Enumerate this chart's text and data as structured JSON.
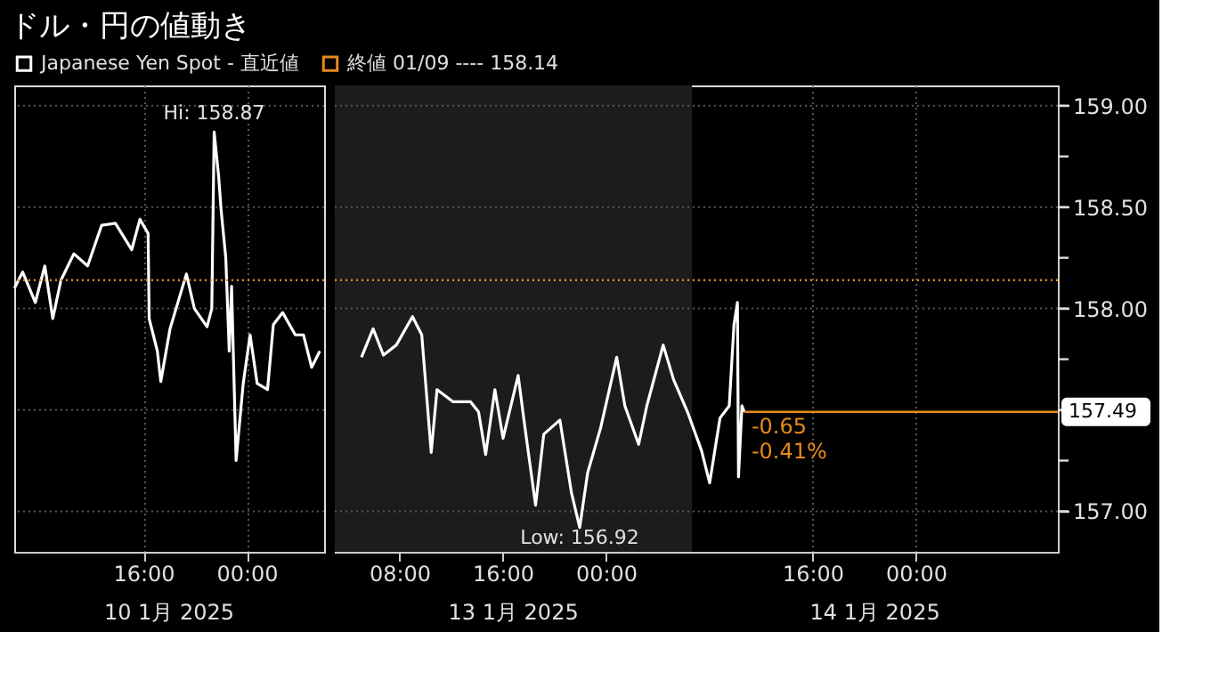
{
  "chart_data": [
    {
      "type": "line",
      "title": "ドル・円の値動き",
      "x": [
        "2025-01-10T06:01",
        "2025-01-10T06:39",
        "2025-01-10T07:38",
        "2025-01-10T08:22",
        "2025-01-10T08:59",
        "2025-01-10T09:37",
        "2025-01-10T10:37",
        "2025-01-10T11:41",
        "2025-01-10T12:46",
        "2025-01-10T13:50",
        "2025-01-10T15:06",
        "2025-01-10T15:44",
        "2025-01-10T16:22",
        "2025-01-10T16:27",
        "2025-01-10T17:05",
        "2025-01-10T17:21",
        "2025-01-10T18:04",
        "2025-01-10T19:20",
        "2025-01-10T19:57",
        "2025-01-10T20:56",
        "2025-01-10T21:18",
        "2025-01-10T21:29",
        "2025-01-10T21:50",
        "2025-01-10T22:01",
        "2025-01-10T22:23",
        "2025-01-10T22:39",
        "2025-01-10T22:50",
        "2025-01-10T23:11",
        "2025-01-10T23:44",
        "2025-01-11T00:16",
        "2025-01-11T00:49",
        "2025-01-11T01:37",
        "2025-01-11T02:04",
        "2025-01-11T02:47",
        "2025-01-11T03:46",
        "2025-01-11T04:24",
        "2025-01-11T05:02",
        "2025-01-11T05:40"
      ],
      "series": [
        {
          "name": "Japanese Yen Spot - 直近値",
          "color": "#ffffff",
          "values": [
            158.1,
            158.18,
            158.03,
            158.21,
            157.95,
            158.14,
            158.27,
            158.21,
            158.41,
            158.42,
            158.29,
            158.44,
            158.37,
            157.95,
            157.79,
            157.64,
            157.9,
            158.17,
            158.0,
            157.91,
            158.0,
            158.87,
            158.65,
            158.49,
            158.25,
            157.79,
            158.11,
            157.25,
            157.63,
            157.87,
            157.63,
            157.6,
            157.92,
            157.98,
            157.87,
            157.87,
            157.71,
            157.79
          ]
        }
      ],
      "xlim": [
        "2025-01-10T06:00",
        "2025-01-11T06:00"
      ],
      "xticks": [
        {
          "value": "2025-01-10T16:00",
          "label": "16:00"
        },
        {
          "value": "2025-01-11T00:00",
          "label": "00:00"
        }
      ],
      "ylim": [
        156.8,
        159.1
      ],
      "yticks": [
        157,
        157.5,
        158,
        158.5,
        159
      ],
      "tick_labels": "x",
      "ref_lines": [
        {
          "axis": "y",
          "value": 158.14,
          "label": "終値 01/09 ---- 158.14",
          "color": "#e8891c",
          "line_style": "dotted"
        }
      ],
      "annotations": [
        {
          "text": "Hi: 158.87",
          "x": "2025-01-10T21:29",
          "y": 158.87
        },
        "10 1月 2025"
      ],
      "grid": true,
      "legend": "top",
      "line_style": "solid",
      "marker": "none"
    },
    {
      "type": "line",
      "x": [
        "2025-01-13T05:04",
        "2025-01-13T05:58",
        "2025-01-13T06:46",
        "2025-01-13T07:46",
        "2025-01-13T09:01",
        "2025-01-13T09:44",
        "2025-01-13T10:28",
        "2025-01-13T10:55",
        "2025-01-13T12:10",
        "2025-01-13T13:31",
        "2025-01-13T14:08",
        "2025-01-13T14:41",
        "2025-01-13T15:24",
        "2025-01-13T16:02",
        "2025-01-13T17:12",
        "2025-01-13T17:44",
        "2025-01-13T18:33",
        "2025-01-13T19:11",
        "2025-01-13T20:26",
        "2025-01-13T21:20",
        "2025-01-13T21:58",
        "2025-01-13T22:35",
        "2025-01-13T23:35",
        "2025-01-14T00:50",
        "2025-01-14T01:28",
        "2025-01-14T02:32",
        "2025-01-14T03:10",
        "2025-01-14T04:26",
        "2025-01-14T05:14",
        "2025-01-14T06:19",
        "2025-01-14T07:24",
        "2025-01-14T08:02",
        "2025-01-14T08:50",
        "2025-01-14T09:33",
        "2025-01-14T09:55",
        "2025-01-14T10:11",
        "2025-01-14T10:16",
        "2025-01-14T10:32",
        "2025-01-14T10:43"
      ],
      "series": [
        {
          "name": "Japanese Yen Spot - 直近値",
          "color": "#ffffff",
          "values": [
            157.76,
            157.9,
            157.77,
            157.82,
            157.96,
            157.87,
            157.29,
            157.6,
            157.54,
            157.54,
            157.49,
            157.28,
            157.6,
            157.36,
            157.67,
            157.41,
            157.03,
            157.38,
            157.45,
            157.09,
            156.92,
            157.19,
            157.41,
            157.76,
            157.52,
            157.33,
            157.52,
            157.82,
            157.65,
            157.49,
            157.3,
            157.14,
            157.46,
            157.52,
            157.92,
            158.03,
            157.17,
            157.52,
            157.49
          ]
        }
      ],
      "xlim": [
        "2025-01-13T03:00",
        "2025-01-15T11:00"
      ],
      "xticks": [
        {
          "value": "2025-01-13T08:00",
          "label": "08:00"
        },
        {
          "value": "2025-01-13T16:00",
          "label": "16:00"
        },
        {
          "value": "2025-01-14T00:00",
          "label": "00:00"
        },
        {
          "value": "2025-01-14T16:00",
          "label": "16:00"
        },
        {
          "value": "2025-01-15T00:00",
          "label": "00:00"
        }
      ],
      "ylim": [
        156.8,
        159.1
      ],
      "yticks": [
        {
          "value": 157,
          "label": "157.00"
        },
        {
          "value": 157.25,
          "label": null
        },
        {
          "value": 157.5,
          "label": null
        },
        {
          "value": 157.75,
          "label": null
        },
        {
          "value": 158,
          "label": "158.00"
        },
        {
          "value": 158.25,
          "label": null
        },
        {
          "value": 158.5,
          "label": "158.50"
        },
        {
          "value": 158.75,
          "label": null
        },
        {
          "value": 159,
          "label": "159.00"
        }
      ],
      "bands": [
        {
          "axis": "x",
          "from": "2025-01-13T03:00",
          "to": "2025-01-14T06:40",
          "color": "#1c1c1c"
        }
      ],
      "ref_lines": [
        {
          "axis": "y",
          "value": 158.14,
          "color": "#e8891c",
          "line_style": "dotted"
        },
        {
          "axis": "y",
          "value": 157.49,
          "label": "157.49",
          "color": "#e8891c",
          "line_style": "solid"
        }
      ],
      "annotations": [
        {
          "text": "Low: 156.92",
          "x": "2025-01-13T21:58",
          "y": 156.92
        },
        {
          "text": "-0.65",
          "x": "2025-01-14T10:43",
          "y": 157.49
        },
        {
          "text": "-0.41%",
          "x": "2025-01-14T10:43",
          "y": 157.49
        },
        "13 1月 2025",
        "14 1月 2025"
      ],
      "grid": true,
      "line_style": "solid",
      "marker": "none"
    }
  ]
}
